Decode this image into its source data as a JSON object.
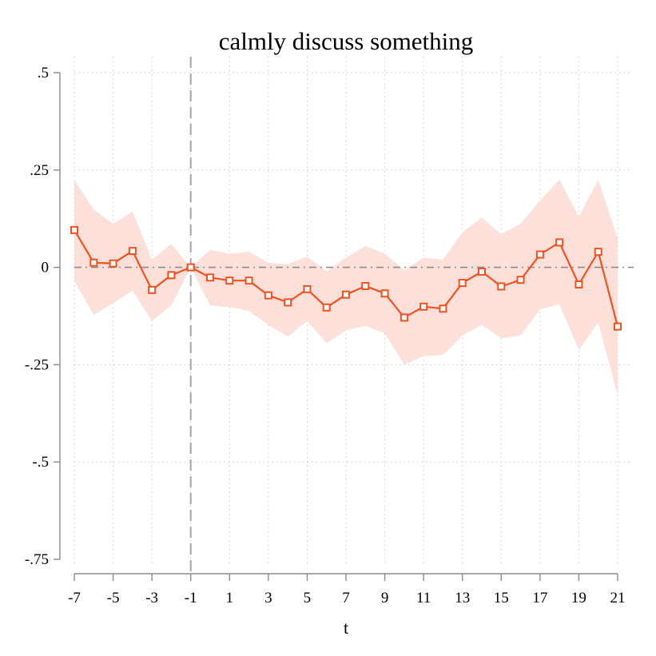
{
  "chart_data": {
    "type": "line",
    "title": "calmly discuss something",
    "xlabel": "t",
    "ylabel": "",
    "xlim": [
      -7,
      21
    ],
    "ylim": [
      -0.75,
      0.5
    ],
    "x_ticks": [
      -7,
      -5,
      -3,
      -1,
      1,
      3,
      5,
      7,
      9,
      11,
      13,
      15,
      17,
      19,
      21
    ],
    "x_tick_labels": [
      "-7",
      "-5",
      "-3",
      "-1",
      "1",
      "3",
      "5",
      "7",
      "9",
      "11",
      "13",
      "15",
      "17",
      "19",
      "21"
    ],
    "y_ticks": [
      0.5,
      0.25,
      0,
      -0.25,
      -0.5,
      -0.75
    ],
    "y_tick_labels": [
      ".5",
      ".25",
      "0",
      "-.25",
      "-.5",
      "-.75"
    ],
    "grid": true,
    "reference_lines": {
      "horizontal": 0,
      "vertical": -1
    },
    "series": [
      {
        "x": [
          -7,
          -6,
          -5,
          -4,
          -3,
          -2,
          -1,
          0,
          1,
          2,
          3,
          4,
          5,
          6,
          7,
          8,
          9,
          10,
          11,
          12,
          13,
          14,
          15,
          16,
          17,
          18,
          19,
          20,
          21
        ],
        "values": [
          0.096,
          0.012,
          0.01,
          0.042,
          -0.058,
          -0.02,
          0.0,
          -0.026,
          -0.034,
          -0.034,
          -0.072,
          -0.09,
          -0.056,
          -0.103,
          -0.07,
          -0.048,
          -0.067,
          -0.129,
          -0.101,
          -0.106,
          -0.04,
          -0.011,
          -0.049,
          -0.032,
          0.033,
          0.064,
          -0.044,
          0.04,
          -0.152
        ],
        "ci_upper": [
          0.225,
          0.148,
          0.112,
          0.143,
          0.02,
          0.06,
          0.0,
          0.045,
          0.035,
          0.04,
          0.012,
          0.008,
          0.028,
          -0.01,
          0.025,
          0.055,
          0.035,
          -0.008,
          0.025,
          0.02,
          0.09,
          0.128,
          0.085,
          0.112,
          0.172,
          0.225,
          0.13,
          0.225,
          0.075
        ],
        "ci_lower": [
          -0.035,
          -0.122,
          -0.092,
          -0.06,
          -0.138,
          -0.098,
          0.0,
          -0.098,
          -0.102,
          -0.112,
          -0.148,
          -0.178,
          -0.138,
          -0.195,
          -0.162,
          -0.15,
          -0.17,
          -0.25,
          -0.228,
          -0.225,
          -0.175,
          -0.148,
          -0.182,
          -0.175,
          -0.108,
          -0.095,
          -0.212,
          -0.142,
          -0.328
        ]
      }
    ],
    "colors": {
      "line": "#f4511e",
      "band": "#fde0da",
      "axis": "#8c8c8c",
      "grid": "#c8c8c8"
    }
  }
}
